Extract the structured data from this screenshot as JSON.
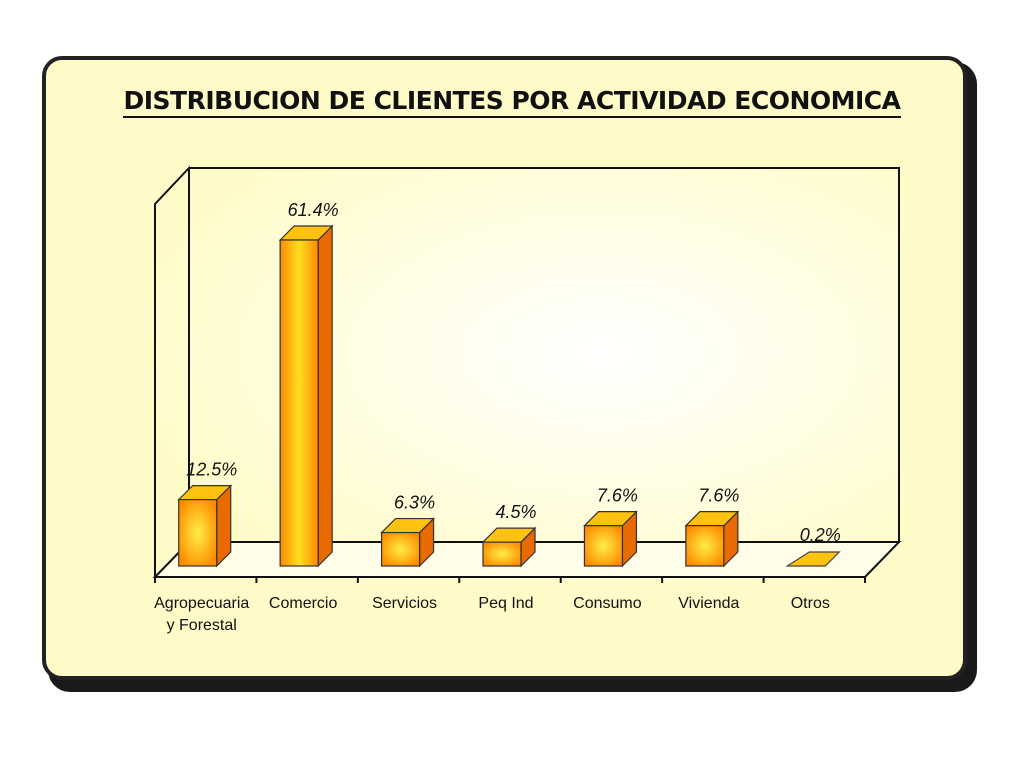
{
  "chart_data": {
    "type": "bar",
    "title": "DISTRIBUCION DE CLIENTES POR ACTIVIDAD ECONOMICA",
    "categories": [
      "Agropecuaria\ny Forestal",
      "Comercio",
      "Servicios",
      "Peq Ind",
      "Consumo",
      "Vivienda",
      "Otros"
    ],
    "values": [
      12.5,
      61.4,
      6.3,
      4.5,
      7.6,
      7.6,
      0.2
    ],
    "data_labels": [
      "12.5%",
      "61.4%",
      "6.3%",
      "4.5%",
      "7.6%",
      "7.6%",
      "0.2%"
    ],
    "xlabel": "",
    "ylabel": "",
    "ylim": [
      0,
      70
    ],
    "grid": false,
    "legend": "none",
    "style": "3d",
    "colors": {
      "bar_front": "#ff9a00",
      "bar_highlight": "#ffee44",
      "bar_top": "#ffc20e",
      "bar_side": "#e86a00",
      "background": "#fffbc8"
    }
  }
}
